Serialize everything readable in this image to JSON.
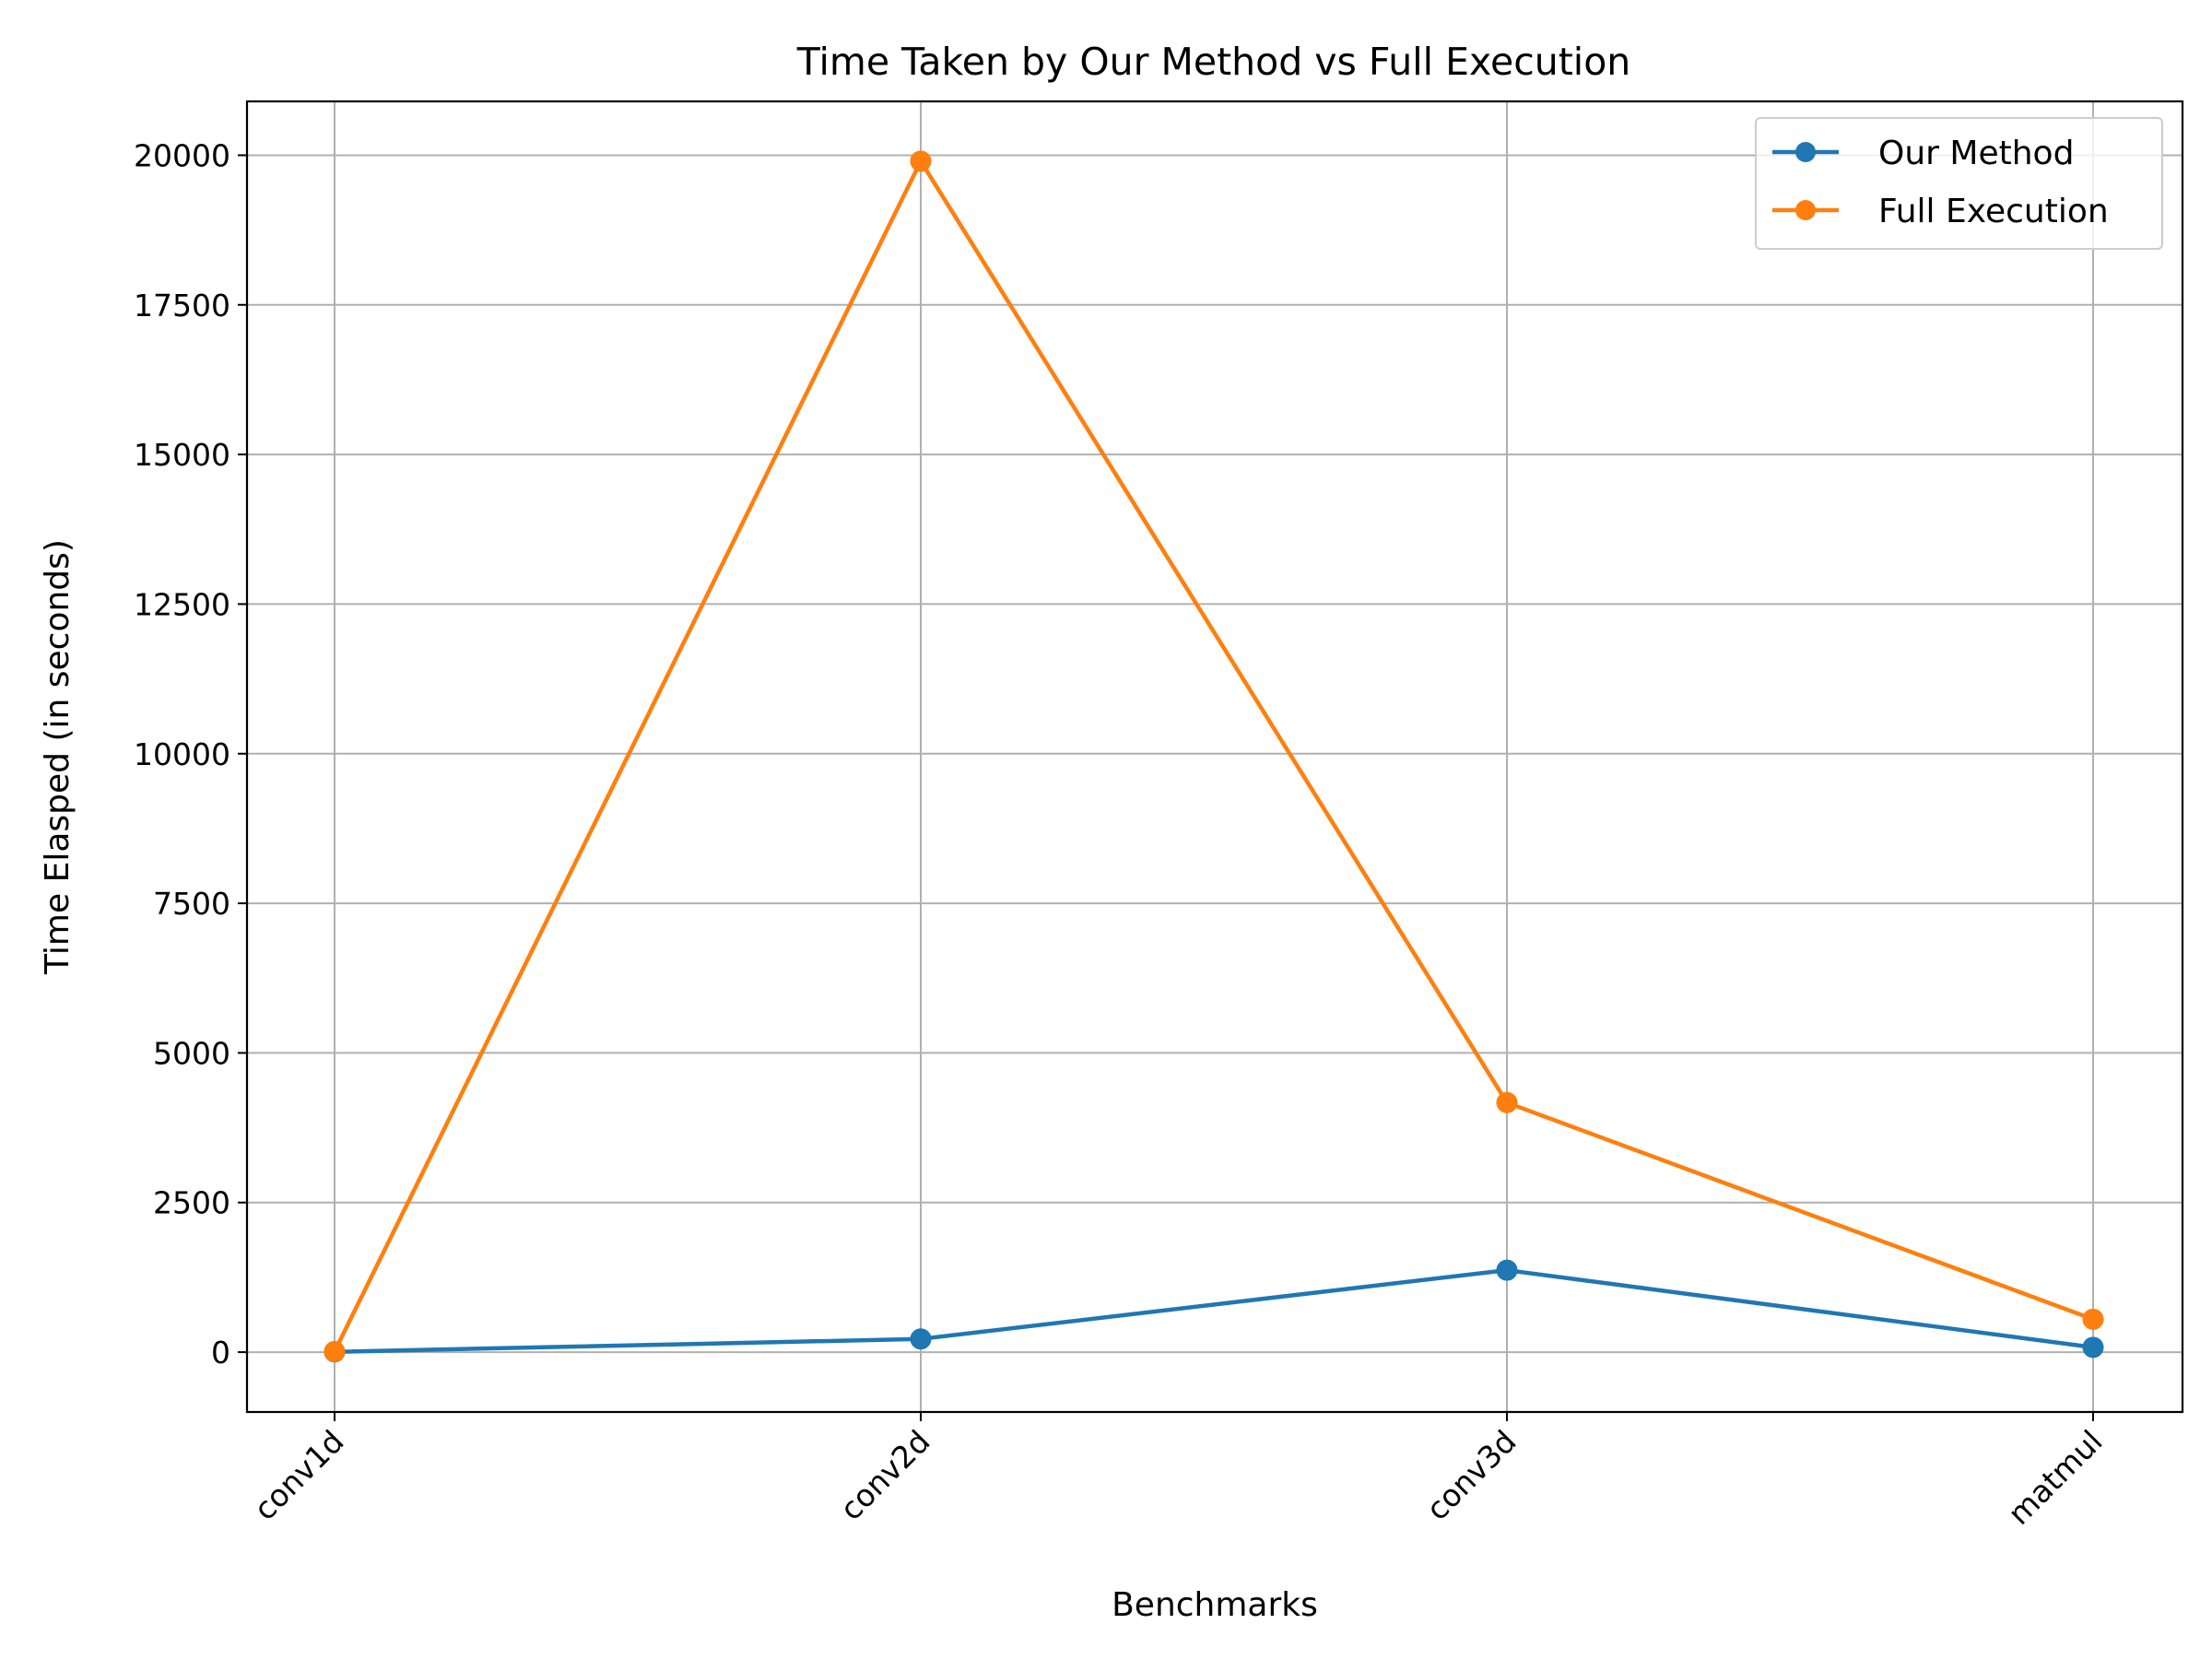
{
  "chart_data": {
    "type": "line",
    "title": "Time Taken by Our Method vs Full Execution",
    "xlabel": "Benchmarks",
    "ylabel": "Time Elasped (in seconds)",
    "categories": [
      "conv1d",
      "conv2d",
      "conv3d",
      "matmul"
    ],
    "ylim": [
      -1000,
      20900
    ],
    "yticks": [
      0,
      2500,
      5000,
      7500,
      10000,
      12500,
      15000,
      17500,
      20000
    ],
    "ytick_labels": [
      "0",
      "2500",
      "5000",
      "7500",
      "10000",
      "12500",
      "15000",
      "17500",
      "20000"
    ],
    "grid": true,
    "legend_position": "upper right",
    "series": [
      {
        "name": "Our Method",
        "color": "#1f77b4",
        "values": [
          5,
          220,
          1370,
          80
        ]
      },
      {
        "name": "Full Execution",
        "color": "#ff7f0e",
        "values": [
          10,
          19900,
          4170,
          550
        ]
      }
    ]
  }
}
